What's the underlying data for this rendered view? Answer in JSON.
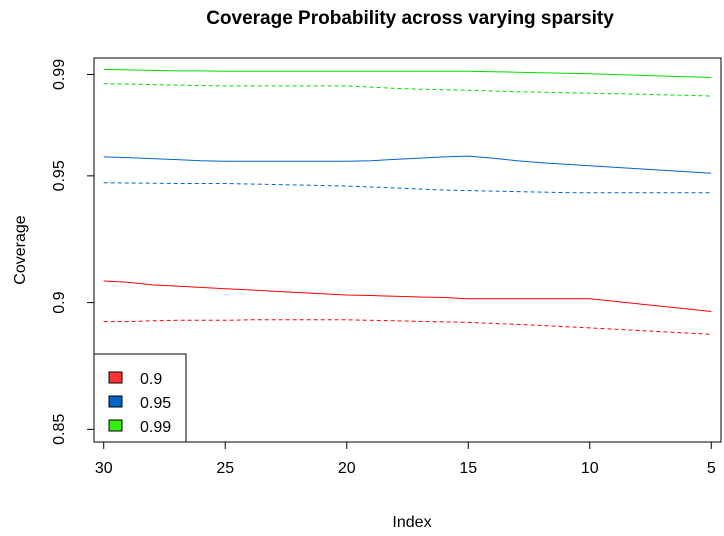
{
  "chart_data": {
    "type": "line",
    "title": "Coverage Probability across varying sparsity",
    "xlabel": "Index",
    "ylabel": "Coverage",
    "x_reversed": true,
    "xlim": [
      30.4,
      4.6
    ],
    "ylim": [
      0.845,
      0.9965
    ],
    "x_ticks": [
      30,
      25,
      20,
      15,
      10,
      5
    ],
    "y_ticks": [
      0.85,
      0.9,
      0.95,
      0.99
    ],
    "y_tick_labels": [
      "0.85",
      "0.9",
      "0.95",
      "0.99"
    ],
    "x": [
      30,
      29,
      28,
      27,
      26,
      25,
      24,
      23,
      22,
      21,
      20,
      19,
      18,
      17,
      16,
      15,
      14,
      13,
      12,
      11,
      10,
      9,
      8,
      7,
      6,
      5
    ],
    "series": [
      {
        "color": "#ff0000",
        "style": "solid",
        "values": [
          0.9085,
          0.908,
          0.907,
          0.9065,
          0.906,
          0.9055,
          0.905,
          0.9045,
          0.904,
          0.9035,
          0.903,
          0.9028,
          0.9025,
          0.9022,
          0.902,
          0.9015,
          0.9015,
          0.9015,
          0.9015,
          0.9015,
          0.9015,
          0.9005,
          0.8995,
          0.8985,
          0.8975,
          0.8965
        ]
      },
      {
        "color": "#ff0000",
        "style": "dashed",
        "values": [
          0.8925,
          0.8925,
          0.8928,
          0.893,
          0.893,
          0.893,
          0.8932,
          0.8932,
          0.8932,
          0.8932,
          0.8932,
          0.893,
          0.8928,
          0.8926,
          0.8924,
          0.8922,
          0.8918,
          0.8914,
          0.891,
          0.8905,
          0.89,
          0.8895,
          0.889,
          0.8885,
          0.888,
          0.8875
        ]
      },
      {
        "color": "#0066cc",
        "style": "solid",
        "values": [
          0.9575,
          0.9572,
          0.9568,
          0.9564,
          0.956,
          0.9558,
          0.9558,
          0.9558,
          0.9558,
          0.9558,
          0.9558,
          0.956,
          0.9565,
          0.957,
          0.9575,
          0.9578,
          0.957,
          0.956,
          0.9552,
          0.9546,
          0.954,
          0.9534,
          0.9528,
          0.9522,
          0.9516,
          0.951
        ]
      },
      {
        "color": "#0066cc",
        "style": "dashed",
        "values": [
          0.9473,
          0.9472,
          0.9471,
          0.947,
          0.947,
          0.947,
          0.9468,
          0.9466,
          0.9464,
          0.9462,
          0.946,
          0.9456,
          0.9452,
          0.9448,
          0.9444,
          0.9442,
          0.944,
          0.9438,
          0.9436,
          0.9434,
          0.9433,
          0.9433,
          0.9433,
          0.9433,
          0.9433,
          0.9433
        ]
      },
      {
        "color": "#00dd00",
        "style": "solid",
        "values": [
          0.992,
          0.9918,
          0.9916,
          0.9914,
          0.9914,
          0.9913,
          0.9913,
          0.9913,
          0.9913,
          0.9913,
          0.9913,
          0.9913,
          0.9913,
          0.9913,
          0.9913,
          0.9913,
          0.9911,
          0.9909,
          0.9907,
          0.9905,
          0.9903,
          0.99,
          0.9897,
          0.9894,
          0.9891,
          0.9888
        ]
      },
      {
        "color": "#00dd00",
        "style": "dashed",
        "values": [
          0.9864,
          0.9862,
          0.986,
          0.9858,
          0.9856,
          0.9855,
          0.9855,
          0.9855,
          0.9855,
          0.9855,
          0.9855,
          0.985,
          0.9845,
          0.9842,
          0.984,
          0.9838,
          0.9835,
          0.9832,
          0.983,
          0.9828,
          0.9826,
          0.9824,
          0.9822,
          0.982,
          0.9818,
          0.9815
        ]
      }
    ],
    "legend": {
      "position": "bottom-left",
      "items": [
        {
          "label": "0.9",
          "color": "#ff3333"
        },
        {
          "label": "0.95",
          "color": "#0066cc"
        },
        {
          "label": "0.99",
          "color": "#33ee11"
        }
      ]
    },
    "grid": false
  }
}
